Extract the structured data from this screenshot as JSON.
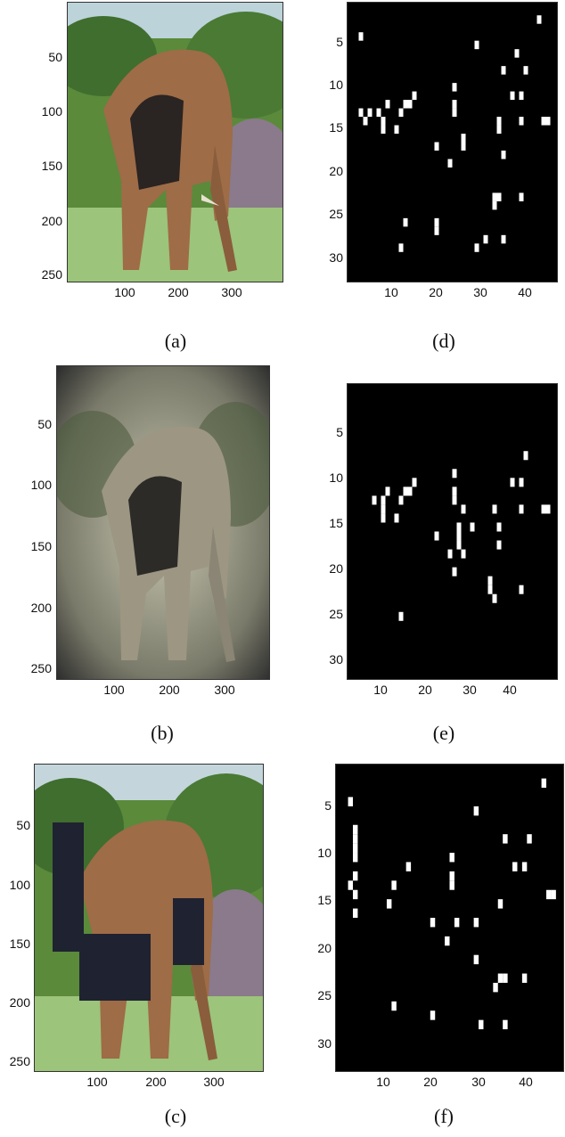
{
  "captions": {
    "a": "(a)",
    "b": "(b)",
    "c": "(c)",
    "d": "(d)",
    "e": "(e)",
    "f": "(f)"
  },
  "image_axes": {
    "y_ticks": [
      "50",
      "100",
      "150",
      "200",
      "250"
    ],
    "x_ticks": [
      "100",
      "200",
      "300"
    ]
  },
  "map_axes": {
    "y_ticks": [
      "5",
      "10",
      "15",
      "20",
      "25",
      "30"
    ],
    "x_ticks": [
      "10",
      "20",
      "30",
      "40"
    ]
  },
  "chart_data": [
    {
      "type": "heatmap",
      "panel": "d",
      "description_values": "binary map, white cells (col,row) on 47x33 grid",
      "xlim": [
        0,
        47
      ],
      "ylim": [
        33,
        0
      ],
      "cells": [
        [
          43,
          2
        ],
        [
          3,
          4
        ],
        [
          29,
          5
        ],
        [
          38,
          6
        ],
        [
          35,
          8
        ],
        [
          40,
          8
        ],
        [
          37,
          11
        ],
        [
          39,
          11
        ],
        [
          15,
          11
        ],
        [
          14,
          12
        ],
        [
          13,
          12
        ],
        [
          9,
          12
        ],
        [
          24,
          10
        ],
        [
          24,
          12
        ],
        [
          24,
          13
        ],
        [
          3,
          13
        ],
        [
          5,
          13
        ],
        [
          7,
          13
        ],
        [
          12,
          13
        ],
        [
          4,
          14
        ],
        [
          8,
          14
        ],
        [
          8,
          15
        ],
        [
          11,
          15
        ],
        [
          34,
          14
        ],
        [
          34,
          15
        ],
        [
          39,
          14
        ],
        [
          44,
          14
        ],
        [
          45,
          14
        ],
        [
          26,
          16
        ],
        [
          26,
          17
        ],
        [
          20,
          17
        ],
        [
          23,
          19
        ],
        [
          35,
          18
        ],
        [
          33,
          23
        ],
        [
          34,
          23
        ],
        [
          33,
          24
        ],
        [
          39,
          23
        ],
        [
          20,
          26
        ],
        [
          20,
          27
        ],
        [
          13,
          26
        ],
        [
          35,
          28
        ],
        [
          31,
          28
        ],
        [
          29,
          29
        ],
        [
          12,
          29
        ]
      ]
    },
    {
      "type": "heatmap",
      "panel": "e",
      "xlim": [
        0,
        47
      ],
      "ylim": [
        33,
        0
      ],
      "cells": [
        [
          40,
          8
        ],
        [
          24,
          10
        ],
        [
          37,
          11
        ],
        [
          39,
          11
        ],
        [
          15,
          11
        ],
        [
          14,
          12
        ],
        [
          13,
          12
        ],
        [
          9,
          12
        ],
        [
          24,
          12
        ],
        [
          24,
          13
        ],
        [
          6,
          13
        ],
        [
          8,
          13
        ],
        [
          12,
          13
        ],
        [
          8,
          14
        ],
        [
          8,
          15
        ],
        [
          11,
          15
        ],
        [
          33,
          14
        ],
        [
          39,
          14
        ],
        [
          44,
          14
        ],
        [
          45,
          14
        ],
        [
          26,
          14
        ],
        [
          25,
          16
        ],
        [
          25,
          17
        ],
        [
          25,
          18
        ],
        [
          28,
          16
        ],
        [
          34,
          16
        ],
        [
          20,
          17
        ],
        [
          34,
          18
        ],
        [
          23,
          19
        ],
        [
          26,
          19
        ],
        [
          24,
          21
        ],
        [
          32,
          22
        ],
        [
          32,
          23
        ],
        [
          33,
          24
        ],
        [
          39,
          23
        ],
        [
          12,
          26
        ]
      ]
    },
    {
      "type": "heatmap",
      "panel": "f",
      "xlim": [
        0,
        47
      ],
      "ylim": [
        33,
        0
      ],
      "cells": [
        [
          43,
          2
        ],
        [
          3,
          4
        ],
        [
          29,
          5
        ],
        [
          4,
          7
        ],
        [
          4,
          8
        ],
        [
          4,
          9
        ],
        [
          4,
          10
        ],
        [
          35,
          8
        ],
        [
          40,
          8
        ],
        [
          24,
          10
        ],
        [
          37,
          11
        ],
        [
          39,
          11
        ],
        [
          15,
          11
        ],
        [
          4,
          12
        ],
        [
          3,
          13
        ],
        [
          12,
          13
        ],
        [
          4,
          14
        ],
        [
          24,
          12
        ],
        [
          24,
          13
        ],
        [
          11,
          15
        ],
        [
          34,
          15
        ],
        [
          44,
          14
        ],
        [
          45,
          14
        ],
        [
          4,
          16
        ],
        [
          20,
          17
        ],
        [
          25,
          17
        ],
        [
          29,
          17
        ],
        [
          23,
          19
        ],
        [
          29,
          21
        ],
        [
          34,
          23
        ],
        [
          35,
          23
        ],
        [
          33,
          24
        ],
        [
          39,
          23
        ],
        [
          12,
          26
        ],
        [
          20,
          27
        ],
        [
          30,
          28
        ],
        [
          35,
          28
        ]
      ]
    }
  ]
}
